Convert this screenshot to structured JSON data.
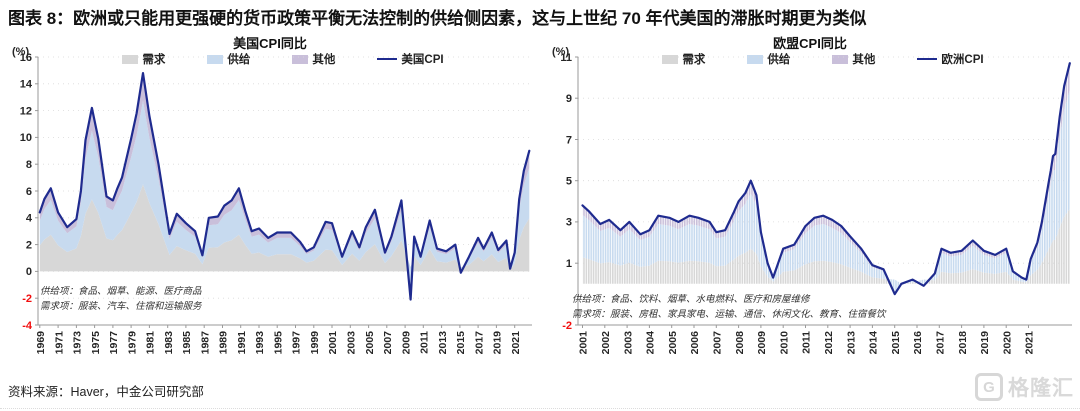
{
  "header": {
    "title": "图表 8：欧洲或只能用更强硬的货币政策平衡无法控制的供给侧因素，这与上世纪 70 年代美国的滞胀时期更为类似"
  },
  "footer": {
    "source": "资料来源：Haver，中金公司研究部",
    "logo_text": "格隆汇"
  },
  "colors": {
    "demand_area": "#D7D7D7",
    "supply_area": "#C7DAEF",
    "other_area": "#C9BFDA",
    "cpi_line": "#1F2B8F",
    "negative_tick": "#F20D0D",
    "axis": "#9A9A9A",
    "tick_text": "#262626"
  },
  "chart_data": [
    {
      "type": "area",
      "title": "美国CPI同比",
      "unit": "(%)",
      "legend_position": "top",
      "grid": "horizontal-dotted",
      "striped_bars": false,
      "ylim": [
        -4,
        16
      ],
      "yticks": [
        -4,
        -2,
        0,
        2,
        4,
        6,
        8,
        10,
        12,
        14,
        16
      ],
      "xlim": [
        1968.8,
        2022.9
      ],
      "xticks": [
        1969,
        1971,
        1973,
        1975,
        1977,
        1979,
        1981,
        1983,
        1985,
        1987,
        1989,
        1991,
        1993,
        1995,
        1997,
        1999,
        2001,
        2003,
        2005,
        2007,
        2009,
        2011,
        2013,
        2015,
        2017,
        2019,
        2021
      ],
      "x": [
        1969.0,
        1969.5,
        1970.2,
        1971.0,
        1972.0,
        1973.0,
        1973.5,
        1974.0,
        1974.7,
        1975.4,
        1976.3,
        1977.0,
        1977.5,
        1978.0,
        1979.0,
        1979.6,
        1980.3,
        1981.0,
        1982.0,
        1983.2,
        1984.0,
        1985.0,
        1986.0,
        1986.8,
        1987.5,
        1988.5,
        1989.2,
        1990.0,
        1990.8,
        1991.5,
        1992.2,
        1993.0,
        1994.0,
        1995.0,
        1996.5,
        1997.5,
        1998.2,
        1999.0,
        2000.3,
        2001.0,
        2002.1,
        2003.2,
        2004.0,
        2004.7,
        2005.7,
        2006.8,
        2007.5,
        2008.6,
        2009.6,
        2010.0,
        2010.7,
        2011.7,
        2012.5,
        2013.5,
        2014.5,
        2015.1,
        2016.0,
        2017.0,
        2017.6,
        2018.5,
        2019.2,
        2020.1,
        2020.5,
        2021.0,
        2021.5,
        2022.0,
        2022.6
      ],
      "series": [
        {
          "name": "需求",
          "color": "#D7D7D7",
          "values": [
            1.94,
            2.38,
            2.73,
            1.94,
            1.45,
            1.72,
            2.64,
            4.31,
            5.37,
            4.36,
            2.46,
            2.33,
            2.73,
            3.08,
            4.36,
            5.19,
            6.51,
            5.1,
            3.52,
            1.23,
            1.89,
            1.58,
            1.32,
            0.53,
            1.76,
            1.8,
            2.16,
            2.33,
            2.73,
            1.98,
            1.32,
            1.41,
            1.1,
            1.28,
            1.28,
            0.97,
            0.66,
            0.79,
            1.63,
            1.58,
            0.48,
            1.32,
            0.79,
            1.45,
            2.02,
            0.62,
            1.14,
            2.33,
            0.3,
            1.14,
            0.48,
            1.67,
            0.75,
            0.66,
            0.88,
            0.3,
            0.48,
            1.1,
            0.75,
            1.28,
            0.7,
            1.01,
            0.09,
            0.62,
            2.38,
            3.3,
            3.96
          ]
        },
        {
          "name": "供给",
          "color": "#C7DAEF",
          "values": [
            1.85,
            2.27,
            2.6,
            1.85,
            1.39,
            1.64,
            2.52,
            4.12,
            5.12,
            4.16,
            2.35,
            2.23,
            2.6,
            2.94,
            4.16,
            4.96,
            6.22,
            4.87,
            3.36,
            1.18,
            1.81,
            1.51,
            1.26,
            0.5,
            1.68,
            1.72,
            2.06,
            2.23,
            2.6,
            1.89,
            1.26,
            1.34,
            1.05,
            1.22,
            1.22,
            0.92,
            0.63,
            0.76,
            1.55,
            1.51,
            0.46,
            1.26,
            0.76,
            1.39,
            1.93,
            0.59,
            1.09,
            2.23,
            -2.5,
            1.09,
            0.46,
            1.6,
            0.71,
            0.63,
            0.84,
            -0.5,
            0.46,
            1.05,
            0.71,
            1.22,
            0.67,
            0.97,
            0.08,
            0.59,
            2.27,
            3.15,
            3.78
          ]
        },
        {
          "name": "其他",
          "color": "#C9BFDA",
          "values": [
            0.62,
            0.76,
            0.87,
            0.62,
            0.46,
            0.55,
            0.84,
            1.37,
            1.71,
            1.39,
            0.78,
            0.74,
            0.87,
            0.98,
            1.39,
            1.65,
            2.07,
            1.62,
            1.12,
            0.39,
            0.6,
            0.5,
            0.42,
            0.17,
            0.56,
            0.57,
            0.69,
            0.74,
            0.87,
            0.63,
            0.42,
            0.45,
            0.35,
            0.41,
            0.41,
            0.31,
            0.21,
            0.25,
            0.52,
            0.5,
            0.15,
            0.42,
            0.25,
            0.46,
            0.64,
            0.2,
            0.36,
            0.74,
            0.1,
            0.36,
            0.15,
            0.53,
            0.24,
            0.21,
            0.28,
            0.1,
            0.15,
            0.35,
            0.24,
            0.41,
            0.22,
            0.32,
            0.03,
            0.2,
            0.76,
            1.05,
            1.26
          ]
        }
      ],
      "line": {
        "name": "美国CPI",
        "color": "#1F2B8F",
        "values": [
          4.4,
          5.4,
          6.2,
          4.4,
          3.3,
          3.9,
          6.0,
          9.8,
          12.2,
          9.9,
          5.6,
          5.3,
          6.2,
          7.0,
          9.9,
          11.8,
          14.8,
          11.6,
          8.0,
          2.8,
          4.3,
          3.6,
          3.0,
          1.2,
          4.0,
          4.1,
          4.9,
          5.3,
          6.2,
          4.5,
          3.0,
          3.2,
          2.5,
          2.9,
          2.9,
          2.2,
          1.5,
          1.8,
          3.7,
          3.6,
          1.1,
          3.0,
          1.8,
          3.3,
          4.6,
          1.4,
          2.6,
          5.3,
          -2.1,
          2.6,
          1.1,
          3.8,
          1.7,
          1.5,
          2.0,
          -0.1,
          1.1,
          2.5,
          1.7,
          2.9,
          1.6,
          2.3,
          0.2,
          1.4,
          5.4,
          7.5,
          9.0
        ]
      },
      "notes": [
        "供给项：食品、烟草、能源、医疗商品",
        "需求项：服装、汽车、住宿和运输服务"
      ]
    },
    {
      "type": "area",
      "title": "欧盟CPI同比",
      "unit": "(%)",
      "legend_position": "top",
      "grid": "horizontal-dotted",
      "striped_bars": true,
      "ylim": [
        -2,
        11
      ],
      "yticks": [
        -2,
        1,
        3,
        5,
        7,
        9,
        11
      ],
      "xlim": [
        2000.8,
        2022.95
      ],
      "xticks": [
        2001,
        2002,
        2003,
        2004,
        2005,
        2006,
        2007,
        2008,
        2009,
        2010,
        2011,
        2012,
        2013,
        2014,
        2015,
        2016,
        2017,
        2018,
        2019,
        2020,
        2021
      ],
      "x": [
        2001.0,
        2001.3,
        2001.8,
        2002.2,
        2002.7,
        2003.1,
        2003.6,
        2004.0,
        2004.4,
        2004.9,
        2005.3,
        2005.8,
        2006.2,
        2006.7,
        2007.0,
        2007.4,
        2007.8,
        2008.0,
        2008.3,
        2008.55,
        2008.8,
        2009.0,
        2009.3,
        2009.55,
        2010.0,
        2010.5,
        2011.0,
        2011.4,
        2011.8,
        2012.2,
        2012.6,
        2013.0,
        2013.5,
        2014.0,
        2014.5,
        2015.0,
        2015.3,
        2015.8,
        2016.3,
        2016.8,
        2017.1,
        2017.5,
        2018.0,
        2018.5,
        2019.0,
        2019.5,
        2020.0,
        2020.3,
        2020.7,
        2020.9,
        2021.1,
        2021.4,
        2021.6,
        2021.9,
        2022.0,
        2022.1,
        2022.2,
        2022.4,
        2022.6,
        2022.85
      ],
      "series": [
        {
          "name": "需求",
          "color": "#D7D7D7",
          "values": [
            1.29,
            1.19,
            0.99,
            1.05,
            0.88,
            1.02,
            0.82,
            0.88,
            1.12,
            1.09,
            1.02,
            1.12,
            1.09,
            1.02,
            0.85,
            0.88,
            1.19,
            1.36,
            1.5,
            1.7,
            1.46,
            0.85,
            0.34,
            0.1,
            0.58,
            0.65,
            0.95,
            1.09,
            1.12,
            1.05,
            0.95,
            0.78,
            0.58,
            0.31,
            0.24,
            0.2,
            0.0,
            0.07,
            0.2,
            0.17,
            0.58,
            0.51,
            0.54,
            0.71,
            0.54,
            0.48,
            0.58,
            0.2,
            0.1,
            0.07,
            0.41,
            0.68,
            1.02,
            1.67,
            1.87,
            2.11,
            2.14,
            2.75,
            3.26,
            3.64
          ]
        },
        {
          "name": "供给",
          "color": "#C7DAEF",
          "values": [
            2.05,
            1.89,
            1.57,
            1.67,
            1.4,
            1.62,
            1.3,
            1.4,
            1.78,
            1.73,
            1.62,
            1.78,
            1.73,
            1.62,
            1.35,
            1.4,
            1.89,
            2.16,
            2.38,
            2.7,
            2.32,
            1.35,
            0.54,
            0.16,
            0.92,
            1.03,
            1.51,
            1.73,
            1.78,
            1.67,
            1.51,
            1.24,
            0.92,
            0.49,
            0.38,
            -0.75,
            0.0,
            0.11,
            -0.35,
            0.27,
            0.92,
            0.81,
            0.86,
            1.13,
            0.86,
            0.76,
            0.92,
            0.32,
            0.16,
            0.11,
            0.65,
            1.08,
            1.62,
            2.65,
            2.97,
            3.35,
            3.4,
            4.37,
            5.18,
            5.78
          ]
        },
        {
          "name": "其他",
          "color": "#C9BFDA",
          "values": [
            0.46,
            0.42,
            0.35,
            0.37,
            0.31,
            0.36,
            0.29,
            0.31,
            0.4,
            0.38,
            0.36,
            0.4,
            0.38,
            0.36,
            0.3,
            0.31,
            0.42,
            0.48,
            0.53,
            0.6,
            0.52,
            0.3,
            0.12,
            0.04,
            0.2,
            0.23,
            0.34,
            0.38,
            0.4,
            0.37,
            0.34,
            0.28,
            0.2,
            0.11,
            0.08,
            0.05,
            0.0,
            0.02,
            0.05,
            0.06,
            0.2,
            0.18,
            0.19,
            0.25,
            0.19,
            0.17,
            0.2,
            0.07,
            0.04,
            0.02,
            0.14,
            0.24,
            0.36,
            0.59,
            0.66,
            0.74,
            0.76,
            0.97,
            1.15,
            1.28
          ]
        }
      ],
      "line": {
        "name": "欧洲CPI",
        "color": "#1F2B8F",
        "values": [
          3.8,
          3.5,
          2.9,
          3.1,
          2.6,
          3.0,
          2.4,
          2.6,
          3.3,
          3.2,
          3.0,
          3.3,
          3.2,
          3.0,
          2.5,
          2.6,
          3.5,
          4.0,
          4.4,
          5.0,
          4.3,
          2.5,
          1.0,
          0.3,
          1.7,
          1.9,
          2.8,
          3.2,
          3.3,
          3.1,
          2.8,
          2.3,
          1.7,
          0.9,
          0.7,
          -0.5,
          0.0,
          0.2,
          -0.1,
          0.5,
          1.7,
          1.5,
          1.6,
          2.1,
          1.6,
          1.4,
          1.7,
          0.6,
          0.3,
          0.2,
          1.2,
          2.0,
          3.0,
          4.9,
          5.5,
          6.2,
          6.3,
          8.1,
          9.6,
          10.7
        ]
      },
      "notes": [
        "供给项：食品、饮料、烟草、水电燃料、医疗和房屋维修",
        "需求项：服装、房租、家具家电、运输、通信、休闲文化、教育、住宿餐饮"
      ]
    }
  ]
}
